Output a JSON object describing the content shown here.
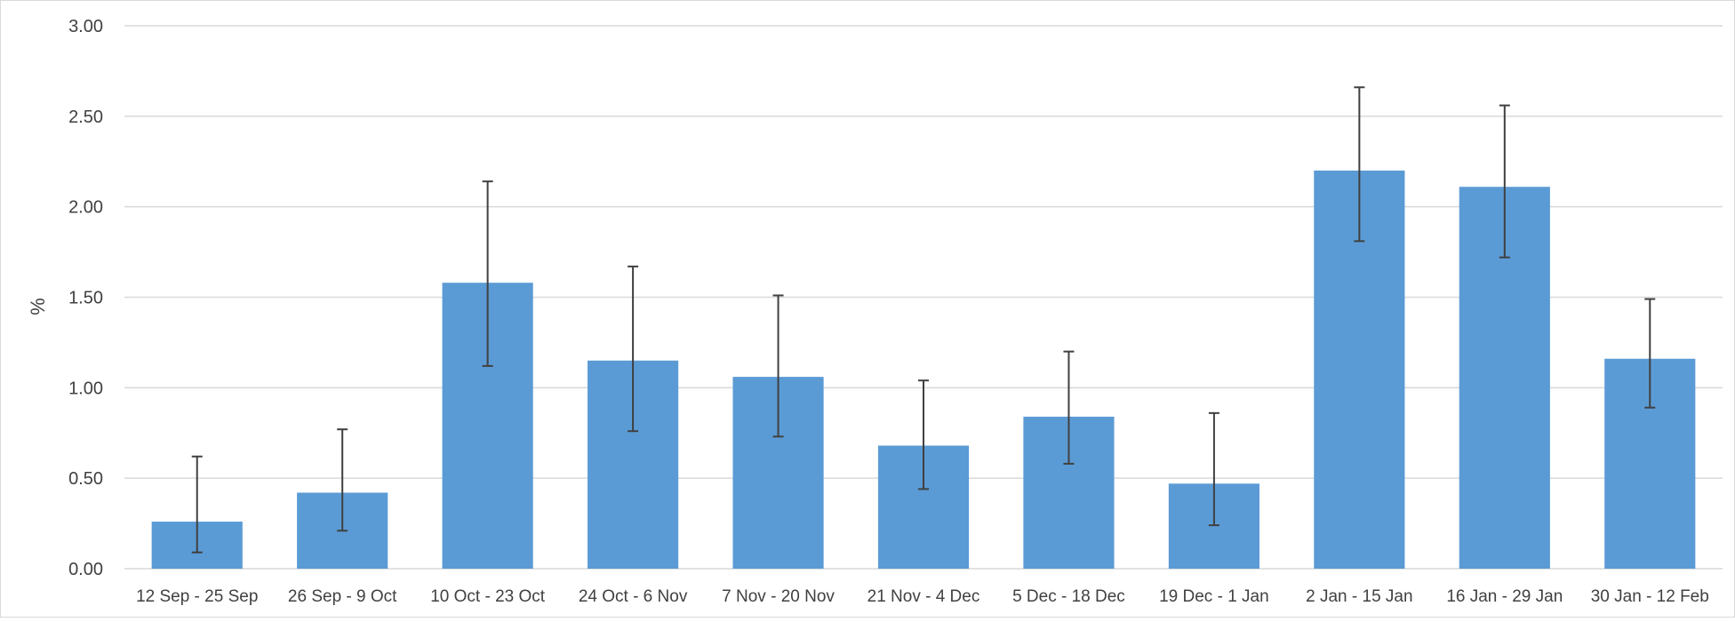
{
  "chart_data": {
    "type": "bar",
    "title": "",
    "xlabel": "",
    "ylabel": "%",
    "ylim": [
      0,
      3
    ],
    "yticks": [
      "0.00",
      "0.50",
      "1.00",
      "1.50",
      "2.00",
      "2.50",
      "3.00"
    ],
    "ytick_values": [
      0,
      0.5,
      1,
      1.5,
      2,
      2.5,
      3
    ],
    "grid": true,
    "categories": [
      "12 Sep - 25 Sep",
      "26 Sep - 9 Oct",
      "10 Oct - 23 Oct",
      "24 Oct - 6 Nov",
      "7 Nov - 20 Nov",
      "21 Nov - 4 Dec",
      "5 Dec - 18 Dec",
      "19 Dec - 1 Jan",
      "2 Jan - 15 Jan",
      "16 Jan - 29 Jan",
      "30 Jan - 12 Feb"
    ],
    "values": [
      0.26,
      0.42,
      1.58,
      1.15,
      1.06,
      0.68,
      0.84,
      0.47,
      2.2,
      2.11,
      1.16
    ],
    "error_lower": [
      0.09,
      0.21,
      1.12,
      0.76,
      0.73,
      0.44,
      0.58,
      0.24,
      1.81,
      1.72,
      0.89
    ],
    "error_upper": [
      0.62,
      0.77,
      2.14,
      1.67,
      1.51,
      1.04,
      1.2,
      0.86,
      2.66,
      2.56,
      1.49
    ],
    "colors": {
      "bar": "#5B9BD5",
      "error_bar": "#404040",
      "grid": "#D9D9D9",
      "axis_text": "#404040",
      "frame": "#D9D9D9"
    }
  }
}
